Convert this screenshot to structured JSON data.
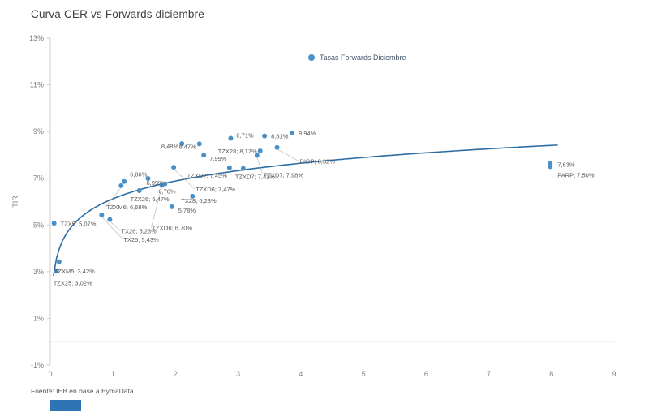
{
  "title": "Curva CER vs Forwards diciembre",
  "legend": {
    "label": "Tasas Forwards Diciembre"
  },
  "footer": {
    "source": "Fuente: IEB en base a BymaData",
    "accent_color": "#2e74b5"
  },
  "colors": {
    "point": "#4a90c8",
    "curve": "#2e6da4",
    "axis": "#cfcfcf",
    "tick_text": "#7f7f7f",
    "point_label": "#595959",
    "leader": "#bdbdbd",
    "title_text": "#3f3f3f"
  },
  "chart_data": {
    "type": "scatter",
    "title": "Curva CER vs Forwards diciembre",
    "xlabel": "",
    "ylabel": "TIR",
    "xlim": [
      0,
      9
    ],
    "ylim": [
      -1,
      13
    ],
    "grid": false,
    "legend_position": "inside-top-center",
    "x_ticks": [
      {
        "v": 0,
        "label": "0"
      },
      {
        "v": 1,
        "label": "1"
      },
      {
        "v": 2,
        "label": "2"
      },
      {
        "v": 3,
        "label": "3"
      },
      {
        "v": 4,
        "label": "4"
      },
      {
        "v": 5,
        "label": "5"
      },
      {
        "v": 6,
        "label": "6"
      },
      {
        "v": 7,
        "label": "7"
      },
      {
        "v": 8,
        "label": "8"
      },
      {
        "v": 9,
        "label": "9"
      }
    ],
    "y_ticks": [
      {
        "v": 13,
        "label": "13%"
      },
      {
        "v": 11,
        "label": "11%"
      },
      {
        "v": 9,
        "label": "9%"
      },
      {
        "v": 7,
        "label": "7%"
      },
      {
        "v": 5,
        "label": "5%"
      },
      {
        "v": 3,
        "label": "3%"
      },
      {
        "v": 1,
        "label": "1%"
      },
      {
        "v": -1,
        "label": "-1%"
      }
    ],
    "series": [
      {
        "name": "Tasas Forwards Diciembre",
        "marker_color": "#4a90c8",
        "points": [
          {
            "label": "TZX5; 5,07%",
            "x": 0.06,
            "y": 5.07,
            "dx": 8,
            "dy": 3,
            "anchor": "start",
            "leader": false
          },
          {
            "label": "TZXM5; 3,42%",
            "x": 0.14,
            "y": 3.42,
            "dx": -6,
            "dy": 14,
            "anchor": "start",
            "leader": false
          },
          {
            "label": "TZX25; 3,02%",
            "x": 0.1,
            "y": 3.02,
            "dx": -4,
            "dy": 17,
            "anchor": "start",
            "leader": false
          },
          {
            "label": "TX25; 5,43%",
            "x": 0.82,
            "y": 5.43,
            "dx": 27,
            "dy": 33,
            "anchor": "start",
            "leader": true
          },
          {
            "label": "TX26; 5,23%",
            "x": 0.95,
            "y": 5.23,
            "dx": 14,
            "dy": 17,
            "anchor": "start",
            "leader": true
          },
          {
            "label": "TZXM6; 6,68%",
            "x": 1.13,
            "y": 6.68,
            "dx": -18,
            "dy": 29,
            "anchor": "start",
            "leader": true
          },
          {
            "label": "6,86%",
            "x": 1.18,
            "y": 6.86,
            "dx": 7,
            "dy": -6,
            "anchor": "start",
            "leader": false
          },
          {
            "label": "TZX26; 6,47%",
            "x": 1.42,
            "y": 6.47,
            "dx": -11,
            "dy": 13,
            "anchor": "start",
            "leader": false
          },
          {
            "label": "6,99%",
            "x": 1.56,
            "y": 6.99,
            "dx": -2,
            "dy": 8,
            "anchor": "start",
            "leader": false
          },
          {
            "label": "6,76%",
            "x": 1.83,
            "y": 6.76,
            "dx": -8,
            "dy": 12,
            "anchor": "start",
            "leader": false
          },
          {
            "label": "TZXO6; 6,70%",
            "x": 1.78,
            "y": 6.7,
            "dx": -12,
            "dy": 55,
            "anchor": "start",
            "leader": true
          },
          {
            "label": "5,78%",
            "x": 1.94,
            "y": 5.78,
            "dx": 8,
            "dy": 7,
            "anchor": "start",
            "leader": false
          },
          {
            "label": "TX28; 6,23%",
            "x": 2.27,
            "y": 6.23,
            "dx": -14,
            "dy": 8,
            "anchor": "start",
            "leader": false
          },
          {
            "label": "TZXD6; 7,47%",
            "x": 1.97,
            "y": 7.47,
            "dx": 27,
            "dy": 30,
            "anchor": "start",
            "leader": true
          },
          {
            "label": "8,48%",
            "x": 2.1,
            "y": 8.48,
            "dx": -4,
            "dy": 6,
            "anchor": "end",
            "leader": false
          },
          {
            "label": "8,47%",
            "x": 2.38,
            "y": 8.47,
            "dx": -4,
            "dy": 6,
            "anchor": "end",
            "leader": false
          },
          {
            "label": "7,99%",
            "x": 2.45,
            "y": 7.99,
            "dx": 7,
            "dy": 7,
            "anchor": "start",
            "leader": false
          },
          {
            "label": "TZXD7; 7,45%",
            "x": 2.86,
            "y": 7.45,
            "dx": -3,
            "dy": 12,
            "anchor": "end",
            "leader": false
          },
          {
            "label": "TZXD7; 7,42%",
            "x": 3.08,
            "y": 7.42,
            "dx": -10,
            "dy": 13,
            "anchor": "start",
            "leader": false
          },
          {
            "label": "TZXD7; 7,98%",
            "x": 3.3,
            "y": 7.98,
            "dx": 8,
            "dy": 27,
            "anchor": "start",
            "leader": true
          },
          {
            "label": "8,71%",
            "x": 2.88,
            "y": 8.71,
            "dx": 7,
            "dy": -1,
            "anchor": "start",
            "leader": false
          },
          {
            "label": "TZX28; 8,17%",
            "x": 3.35,
            "y": 8.17,
            "dx": -4,
            "dy": 3,
            "anchor": "end",
            "leader": false
          },
          {
            "label": "8,81%",
            "x": 3.42,
            "y": 8.81,
            "dx": 8,
            "dy": 3,
            "anchor": "start",
            "leader": false
          },
          {
            "label": "8,94%",
            "x": 3.86,
            "y": 8.94,
            "dx": 8,
            "dy": 3,
            "anchor": "start",
            "leader": false
          },
          {
            "label": "DICP; 8,32%",
            "x": 3.62,
            "y": 8.32,
            "dx": 28,
            "dy": 20,
            "anchor": "start",
            "leader": true
          },
          {
            "label": "7,63%",
            "x": 7.98,
            "y": 7.63,
            "dx": 9,
            "dy": 4,
            "anchor": "start",
            "leader": false
          },
          {
            "label": "PARP; 7,50%",
            "x": 7.98,
            "y": 7.5,
            "dx": 9,
            "dy": 13,
            "anchor": "start",
            "leader": false
          }
        ]
      }
    ],
    "trend_curve": {
      "type": "logarithmic",
      "formula": "y = 6.12 + 1.10*ln(x)",
      "a": 6.12,
      "b": 1.1,
      "x_start": 0.05,
      "x_end": 8.1,
      "color": "#2e6da4"
    }
  }
}
